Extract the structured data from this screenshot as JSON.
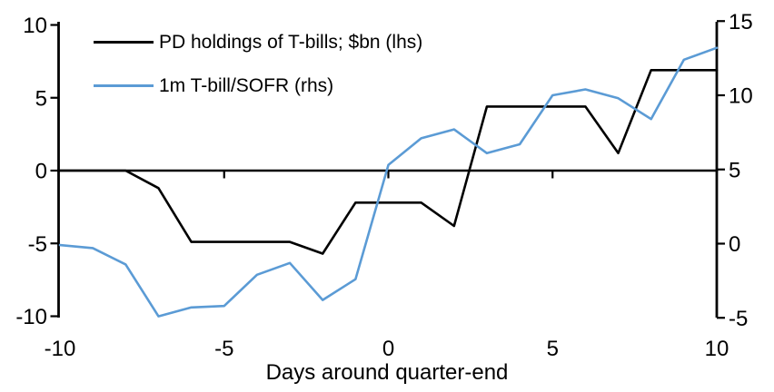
{
  "chart_data": {
    "type": "line",
    "title": "",
    "xlabel": "Days around quarter-end",
    "ylabel_left": "",
    "ylabel_right": "",
    "grid": false,
    "legend_position": "top-left",
    "x": [
      -10,
      -9,
      -8,
      -7,
      -6,
      -5,
      -4,
      -3,
      -2,
      -1,
      0,
      1,
      2,
      3,
      4,
      5,
      6,
      7,
      8,
      9,
      10
    ],
    "series": [
      {
        "name": "PD holdings of T-bills; $bn (lhs)",
        "axis": "left",
        "color": "#000000",
        "values": [
          0,
          0,
          0,
          -1.2,
          -4.9,
          -4.9,
          -4.9,
          -4.9,
          -5.7,
          -2.2,
          -2.2,
          -2.2,
          -3.8,
          4.4,
          4.4,
          4.4,
          4.4,
          1.2,
          6.9,
          6.9,
          6.9
        ]
      },
      {
        "name": "1m T-bill/SOFR (rhs)",
        "axis": "right",
        "color": "#5B9BD5",
        "values": [
          -0.1,
          -0.3,
          -1.4,
          -4.9,
          -4.3,
          -4.2,
          -2.1,
          -1.3,
          -3.8,
          -2.4,
          5.3,
          7.1,
          7.7,
          6.1,
          6.7,
          10.0,
          10.4,
          9.8,
          8.4,
          12.4,
          13.2
        ]
      }
    ],
    "left_axis": {
      "ticks": [
        10,
        5,
        0,
        -5,
        -10
      ],
      "range": [
        -10,
        10
      ]
    },
    "right_axis": {
      "ticks": [
        15,
        10,
        5,
        0,
        -5
      ],
      "range": [
        -5,
        15
      ]
    },
    "x_axis": {
      "ticks": [
        -10,
        -5,
        0,
        5,
        10
      ],
      "range": [
        -10,
        10
      ]
    }
  },
  "legend": {
    "items": [
      {
        "label": "PD holdings of T-bills; $bn (lhs)",
        "color": "#000000"
      },
      {
        "label": "1m T-bill/SOFR (rhs)",
        "color": "#5B9BD5"
      }
    ]
  },
  "colors": {
    "background": "#FFFFFF",
    "axis": "#000000",
    "series_black": "#000000",
    "series_blue": "#5B9BD5"
  }
}
